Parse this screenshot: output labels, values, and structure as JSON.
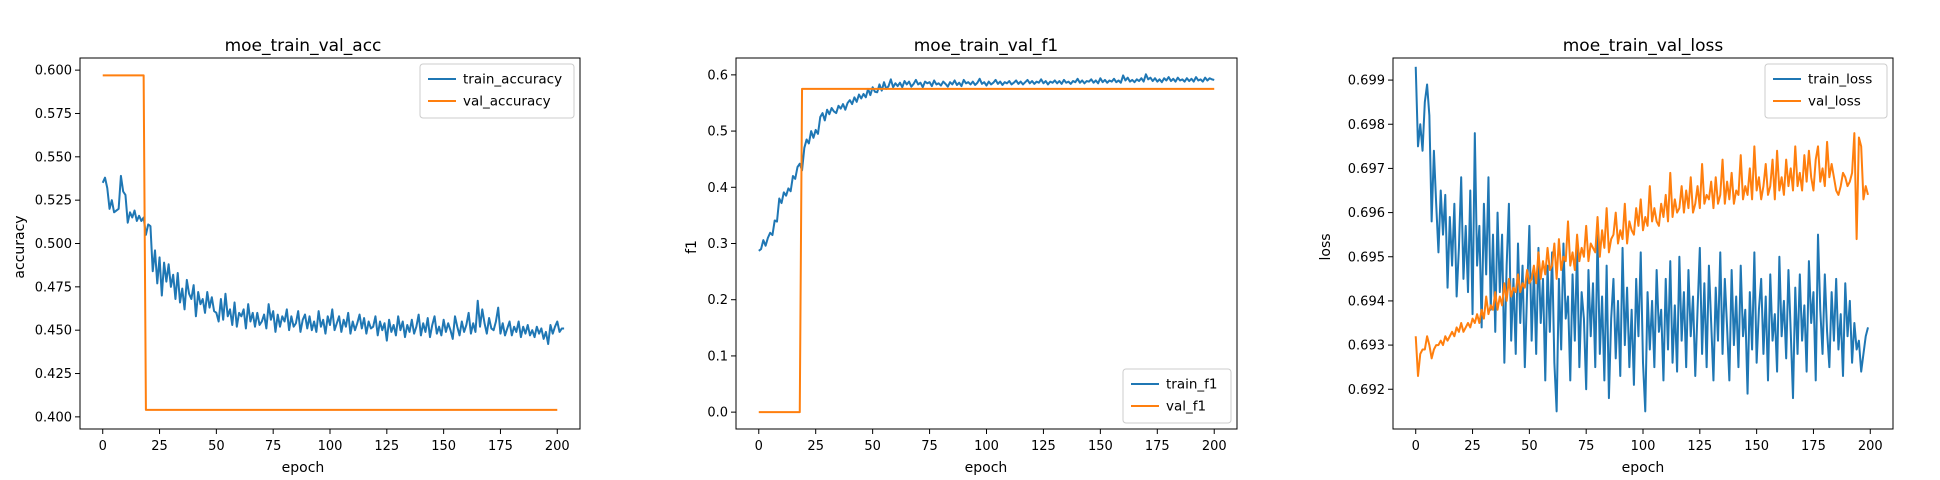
{
  "chart_data": [
    {
      "type": "line",
      "title": "moe_train_val_acc",
      "xlabel": "epoch",
      "ylabel": "accuracy",
      "xlim": [
        -10,
        210
      ],
      "ylim": [
        0.393,
        0.607
      ],
      "xticks": [
        0,
        25,
        50,
        75,
        100,
        125,
        150,
        175,
        200
      ],
      "yticks": [
        0.4,
        0.425,
        0.45,
        0.475,
        0.5,
        0.525,
        0.55,
        0.575,
        0.6
      ],
      "ytick_decimals": 3,
      "legend": "upper right",
      "series": [
        {
          "name": "train_accuracy",
          "color": "#1f77b4",
          "values": [
            0.535,
            0.538,
            0.532,
            0.52,
            0.525,
            0.518,
            0.519,
            0.52,
            0.539,
            0.53,
            0.528,
            0.512,
            0.518,
            0.515,
            0.519,
            0.513,
            0.516,
            0.513,
            0.515,
            0.505,
            0.511,
            0.51,
            0.484,
            0.496,
            0.477,
            0.492,
            0.47,
            0.489,
            0.478,
            0.488,
            0.475,
            0.482,
            0.468,
            0.483,
            0.466,
            0.474,
            0.462,
            0.479,
            0.471,
            0.468,
            0.476,
            0.458,
            0.472,
            0.465,
            0.468,
            0.46,
            0.472,
            0.463,
            0.469,
            0.461,
            0.46,
            0.455,
            0.468,
            0.456,
            0.471,
            0.458,
            0.462,
            0.453,
            0.466,
            0.452,
            0.46,
            0.458,
            0.462,
            0.451,
            0.465,
            0.455,
            0.46,
            0.452,
            0.46,
            0.453,
            0.455,
            0.459,
            0.451,
            0.465,
            0.456,
            0.461,
            0.449,
            0.459,
            0.452,
            0.458,
            0.455,
            0.462,
            0.45,
            0.458,
            0.452,
            0.454,
            0.461,
            0.449,
            0.456,
            0.459,
            0.451,
            0.458,
            0.45,
            0.455,
            0.449,
            0.461,
            0.452,
            0.456,
            0.448,
            0.458,
            0.453,
            0.462,
            0.45,
            0.454,
            0.458,
            0.449,
            0.456,
            0.452,
            0.46,
            0.448,
            0.455,
            0.45,
            0.454,
            0.459,
            0.451,
            0.457,
            0.448,
            0.455,
            0.451,
            0.452,
            0.458,
            0.447,
            0.455,
            0.45,
            0.454,
            0.444,
            0.456,
            0.449,
            0.453,
            0.447,
            0.458,
            0.45,
            0.455,
            0.446,
            0.453,
            0.449,
            0.456,
            0.448,
            0.452,
            0.459,
            0.447,
            0.454,
            0.449,
            0.457,
            0.446,
            0.453,
            0.458,
            0.448,
            0.452,
            0.447,
            0.456,
            0.449,
            0.454,
            0.45,
            0.445,
            0.458,
            0.452,
            0.447,
            0.455,
            0.449,
            0.453,
            0.46,
            0.448,
            0.454,
            0.449,
            0.467,
            0.452,
            0.462,
            0.454,
            0.448,
            0.457,
            0.451,
            0.45,
            0.455,
            0.463,
            0.448,
            0.454,
            0.447,
            0.451,
            0.455,
            0.447,
            0.452,
            0.449,
            0.455,
            0.446,
            0.452,
            0.448,
            0.453,
            0.447,
            0.45,
            0.446,
            0.452,
            0.448,
            0.451,
            0.445,
            0.449,
            0.442,
            0.453,
            0.448,
            0.452,
            0.455,
            0.449,
            0.451,
            0.451
          ]
        },
        {
          "name": "val_accuracy",
          "color": "#ff7f0e",
          "x": [
            0,
            18,
            19,
            200
          ],
          "values": [
            0.597,
            0.597,
            0.404,
            0.404
          ]
        }
      ]
    },
    {
      "type": "line",
      "title": "moe_train_val_f1",
      "xlabel": "epoch",
      "ylabel": "f1",
      "xlim": [
        -10,
        210
      ],
      "ylim": [
        -0.03,
        0.63
      ],
      "xticks": [
        0,
        25,
        50,
        75,
        100,
        125,
        150,
        175,
        200
      ],
      "yticks": [
        0.0,
        0.1,
        0.2,
        0.3,
        0.4,
        0.5,
        0.6
      ],
      "ytick_decimals": 1,
      "legend": "lower right",
      "series": [
        {
          "name": "train_f1",
          "color": "#1f77b4",
          "values": [
            0.287,
            0.29,
            0.306,
            0.296,
            0.31,
            0.319,
            0.315,
            0.341,
            0.339,
            0.38,
            0.372,
            0.391,
            0.385,
            0.398,
            0.393,
            0.42,
            0.415,
            0.436,
            0.442,
            0.43,
            0.47,
            0.485,
            0.478,
            0.5,
            0.488,
            0.502,
            0.495,
            0.525,
            0.532,
            0.519,
            0.538,
            0.53,
            0.541,
            0.535,
            0.532,
            0.545,
            0.54,
            0.548,
            0.538,
            0.55,
            0.555,
            0.548,
            0.56,
            0.552,
            0.565,
            0.558,
            0.566,
            0.56,
            0.575,
            0.564,
            0.578,
            0.57,
            0.569,
            0.583,
            0.572,
            0.587,
            0.575,
            0.58,
            0.592,
            0.578,
            0.585,
            0.58,
            0.586,
            0.578,
            0.589,
            0.583,
            0.588,
            0.579,
            0.584,
            0.591,
            0.583,
            0.586,
            0.578,
            0.588,
            0.585,
            0.587,
            0.58,
            0.59,
            0.583,
            0.585,
            0.581,
            0.588,
            0.584,
            0.579,
            0.587,
            0.583,
            0.59,
            0.582,
            0.586,
            0.58,
            0.591,
            0.585,
            0.587,
            0.583,
            0.588,
            0.582,
            0.586,
            0.593,
            0.584,
            0.587,
            0.581,
            0.588,
            0.583,
            0.586,
            0.591,
            0.584,
            0.588,
            0.582,
            0.587,
            0.585,
            0.589,
            0.583,
            0.586,
            0.59,
            0.584,
            0.588,
            0.583,
            0.587,
            0.591,
            0.585,
            0.589,
            0.584,
            0.588,
            0.586,
            0.592,
            0.585,
            0.589,
            0.583,
            0.588,
            0.586,
            0.59,
            0.585,
            0.589,
            0.584,
            0.591,
            0.586,
            0.588,
            0.584,
            0.589,
            0.587,
            0.593,
            0.586,
            0.59,
            0.585,
            0.589,
            0.588,
            0.592,
            0.586,
            0.59,
            0.585,
            0.594,
            0.587,
            0.591,
            0.586,
            0.59,
            0.588,
            0.593,
            0.587,
            0.59,
            0.586,
            0.599,
            0.59,
            0.595,
            0.588,
            0.591,
            0.587,
            0.592,
            0.589,
            0.594,
            0.588,
            0.601,
            0.592,
            0.595,
            0.589,
            0.594,
            0.588,
            0.592,
            0.587,
            0.594,
            0.59,
            0.596,
            0.589,
            0.593,
            0.588,
            0.595,
            0.59,
            0.592,
            0.588,
            0.594,
            0.589,
            0.593,
            0.588,
            0.596,
            0.59,
            0.592,
            0.588,
            0.595,
            0.59,
            0.594,
            0.592,
            0.591
          ]
        },
        {
          "name": "val_f1",
          "color": "#ff7f0e",
          "x": [
            0,
            18,
            19,
            200
          ],
          "values": [
            0.0,
            0.0,
            0.575,
            0.575
          ]
        }
      ]
    },
    {
      "type": "line",
      "title": "moe_train_val_loss",
      "xlabel": "epoch",
      "ylabel": "loss",
      "xlim": [
        -10,
        210
      ],
      "ylim": [
        0.6911,
        0.6995
      ],
      "xticks": [
        0,
        25,
        50,
        75,
        100,
        125,
        150,
        175,
        200
      ],
      "yticks": [
        0.692,
        0.693,
        0.694,
        0.695,
        0.696,
        0.697,
        0.698,
        0.699
      ],
      "ytick_decimals": 3,
      "legend": "upper right",
      "series": [
        {
          "name": "train_loss",
          "color": "#1f77b4",
          "values": [
            0.6993,
            0.6975,
            0.698,
            0.6974,
            0.6985,
            0.6989,
            0.6982,
            0.6958,
            0.6974,
            0.6962,
            0.6951,
            0.6965,
            0.6955,
            0.6964,
            0.6943,
            0.6959,
            0.6948,
            0.6962,
            0.6941,
            0.6952,
            0.6968,
            0.6945,
            0.6957,
            0.6942,
            0.6965,
            0.6937,
            0.6978,
            0.6948,
            0.6957,
            0.6934,
            0.6962,
            0.6946,
            0.6968,
            0.6938,
            0.6955,
            0.6933,
            0.696,
            0.6942,
            0.6955,
            0.6926,
            0.6948,
            0.6962,
            0.6931,
            0.6945,
            0.6928,
            0.6953,
            0.6935,
            0.6948,
            0.6925,
            0.6942,
            0.6957,
            0.6931,
            0.6947,
            0.6928,
            0.6952,
            0.6935,
            0.6945,
            0.6922,
            0.6948,
            0.6933,
            0.6951,
            0.6926,
            0.6915,
            0.6945,
            0.6929,
            0.6953,
            0.6936,
            0.6941,
            0.6922,
            0.6946,
            0.6931,
            0.6952,
            0.6925,
            0.6942,
            0.6936,
            0.692,
            0.6947,
            0.6932,
            0.6944,
            0.6925,
            0.6955,
            0.6928,
            0.6941,
            0.6922,
            0.6948,
            0.6918,
            0.6936,
            0.6945,
            0.6927,
            0.694,
            0.6923,
            0.6952,
            0.693,
            0.6943,
            0.6925,
            0.6938,
            0.6921,
            0.6945,
            0.6932,
            0.6951,
            0.6926,
            0.6915,
            0.6942,
            0.6929,
            0.694,
            0.6925,
            0.6947,
            0.6933,
            0.6938,
            0.6922,
            0.6945,
            0.6929,
            0.6949,
            0.6926,
            0.6939,
            0.6924,
            0.695,
            0.6931,
            0.6942,
            0.6925,
            0.6947,
            0.6932,
            0.6941,
            0.6923,
            0.6938,
            0.6952,
            0.6928,
            0.6944,
            0.6925,
            0.6948,
            0.6935,
            0.6922,
            0.6943,
            0.6931,
            0.6951,
            0.6928,
            0.6945,
            0.6934,
            0.6922,
            0.6947,
            0.693,
            0.6941,
            0.6925,
            0.6948,
            0.6932,
            0.6938,
            0.6919,
            0.6942,
            0.6929,
            0.6951,
            0.6926,
            0.6938,
            0.6945,
            0.6928,
            0.6941,
            0.6922,
            0.6946,
            0.6931,
            0.6937,
            0.6924,
            0.695,
            0.6932,
            0.694,
            0.6927,
            0.6947,
            0.6933,
            0.6918,
            0.6943,
            0.6928,
            0.6946,
            0.6931,
            0.6939,
            0.6924,
            0.6949,
            0.6935,
            0.6942,
            0.6922,
            0.6955,
            0.6938,
            0.6928,
            0.6946,
            0.6933,
            0.6925,
            0.6942,
            0.6931,
            0.6945,
            0.6929,
            0.6937,
            0.6923,
            0.6944,
            0.6932,
            0.694,
            0.6926,
            0.6935,
            0.6929,
            0.6931,
            0.6924,
            0.6928,
            0.6932,
            0.6934
          ]
        },
        {
          "name": "val_loss",
          "color": "#ff7f0e",
          "values": [
            0.6932,
            0.6923,
            0.6928,
            0.6929,
            0.6929,
            0.6932,
            0.693,
            0.6927,
            0.6929,
            0.693,
            0.693,
            0.6931,
            0.693,
            0.6932,
            0.6931,
            0.6932,
            0.6933,
            0.6932,
            0.6934,
            0.6933,
            0.6935,
            0.6933,
            0.6934,
            0.6935,
            0.6934,
            0.6936,
            0.6935,
            0.6937,
            0.6935,
            0.6938,
            0.6936,
            0.6941,
            0.6937,
            0.6939,
            0.6938,
            0.6942,
            0.6938,
            0.6941,
            0.6939,
            0.6944,
            0.694,
            0.6945,
            0.6941,
            0.6943,
            0.6942,
            0.6946,
            0.6942,
            0.6944,
            0.6943,
            0.6947,
            0.6944,
            0.6945,
            0.6948,
            0.6944,
            0.6951,
            0.6945,
            0.6949,
            0.6946,
            0.6952,
            0.6947,
            0.6948,
            0.6953,
            0.6945,
            0.6954,
            0.6947,
            0.695,
            0.6949,
            0.6958,
            0.6948,
            0.6951,
            0.6947,
            0.6955,
            0.6949,
            0.6952,
            0.695,
            0.6957,
            0.6949,
            0.6953,
            0.6952,
            0.6951,
            0.6959,
            0.695,
            0.6956,
            0.6952,
            0.6961,
            0.6951,
            0.6954,
            0.6955,
            0.696,
            0.6953,
            0.6956,
            0.6954,
            0.6962,
            0.6953,
            0.6958,
            0.6956,
            0.6955,
            0.6961,
            0.6957,
            0.6963,
            0.6956,
            0.6959,
            0.6957,
            0.6966,
            0.6958,
            0.6961,
            0.6958,
            0.6957,
            0.6962,
            0.6959,
            0.6964,
            0.6958,
            0.6969,
            0.6959,
            0.6963,
            0.696,
            0.6961,
            0.6966,
            0.696,
            0.6965,
            0.6961,
            0.6968,
            0.696,
            0.6962,
            0.6966,
            0.6961,
            0.6971,
            0.6962,
            0.6964,
            0.6963,
            0.6967,
            0.6961,
            0.6968,
            0.6962,
            0.6964,
            0.6972,
            0.6962,
            0.6967,
            0.6963,
            0.6969,
            0.6962,
            0.6965,
            0.6964,
            0.6973,
            0.6963,
            0.6966,
            0.6964,
            0.697,
            0.6963,
            0.6975,
            0.6965,
            0.6968,
            0.6963,
            0.6966,
            0.6971,
            0.6964,
            0.6966,
            0.6972,
            0.6963,
            0.6974,
            0.6965,
            0.6968,
            0.6964,
            0.6972,
            0.6966,
            0.697,
            0.6965,
            0.6975,
            0.6966,
            0.6969,
            0.6965,
            0.6973,
            0.6967,
            0.6974,
            0.6968,
            0.6965,
            0.6972,
            0.6975,
            0.6967,
            0.697,
            0.6966,
            0.6976,
            0.6968,
            0.6971,
            0.6968,
            0.6965,
            0.6964,
            0.6966,
            0.6969,
            0.6968,
            0.6966,
            0.6967,
            0.6969,
            0.6978,
            0.6954,
            0.6977,
            0.6975,
            0.6963,
            0.6966,
            0.6964
          ]
        }
      ]
    }
  ]
}
